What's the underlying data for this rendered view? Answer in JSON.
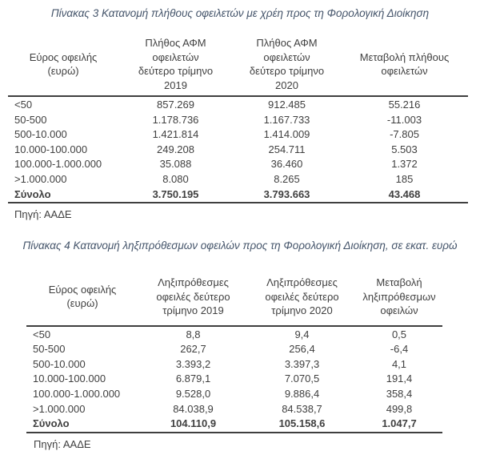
{
  "page": {
    "background": "#ffffff",
    "text_color": "#3f3f3f",
    "caption_color": "#44546a",
    "rule_color": "#3f3f3f"
  },
  "tables": [
    {
      "title": "Πίνακας 3 Κατανομή πλήθους οφειλετών με χρέη προς τη Φορολογική Διοίκηση",
      "headers": [
        "Εύρος οφειλής\n(ευρώ)",
        "Πλήθος ΑΦΜ\nοφειλετών\nδεύτερο τρίμηνο\n2019",
        "Πλήθος ΑΦΜ\nοφειλετών\nδεύτερο τρίμηνο\n2020",
        "Μεταβολή πλήθους\nοφειλετών"
      ],
      "rows": [
        [
          "<50",
          "857.269",
          "912.485",
          "55.216"
        ],
        [
          "50-500",
          "1.178.736",
          "1.167.733",
          "-11.003"
        ],
        [
          "500-10.000",
          "1.421.814",
          "1.414.009",
          "-7.805"
        ],
        [
          "10.000-100.000",
          "249.208",
          "254.711",
          "5.503"
        ],
        [
          "100.000-1.000.000",
          "35.088",
          "36.460",
          "1.372"
        ],
        [
          ">1.000.000",
          "8.080",
          "8.265",
          "185"
        ]
      ],
      "total_row": [
        "Σύνολο",
        "3.750.195",
        "3.793.663",
        "43.468"
      ],
      "source": "Πηγή: ΑΑΔΕ"
    },
    {
      "title": "Πίνακας 4 Κατανομή ληξιπρόθεσμων οφειλών προς τη Φορολογική Διοίκηση, σε εκατ. ευρώ",
      "headers": [
        "Εύρος οφειλής\n(ευρώ)",
        "Ληξιπρόθεσμες\nοφειλές δεύτερο\nτρίμηνο 2019",
        "Ληξιπρόθεσμες\nοφειλές δεύτερο\nτρίμηνο 2020",
        "Μεταβολή\nληξιπρόθεσμων\nοφειλών"
      ],
      "rows": [
        [
          "<50",
          "8,8",
          "9,4",
          "0,5"
        ],
        [
          "50-500",
          "262,7",
          "256,4",
          "-6,4"
        ],
        [
          "500-10.000",
          "3.393,2",
          "3.397,3",
          "4,1"
        ],
        [
          "10.000-100.000",
          "6.879,1",
          "7.070,5",
          "191,4"
        ],
        [
          "100.000-1.000.000",
          "9.528,0",
          "9.886,4",
          "358,4"
        ],
        [
          ">1.000.000",
          "84.038,9",
          "84.538,7",
          "499,8"
        ]
      ],
      "total_row": [
        "Σύνολο",
        "104.110,9",
        "105.158,6",
        "1.047,7"
      ],
      "source": "Πηγή: ΑΑΔΕ"
    }
  ]
}
